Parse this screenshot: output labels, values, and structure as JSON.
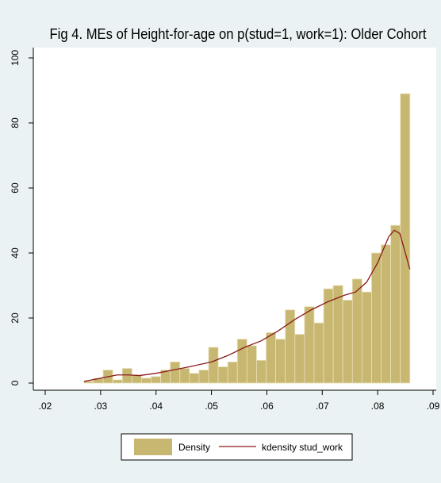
{
  "chart_data": {
    "type": "histogram",
    "title": "Fig 4. MEs of Height-for-age on p(stud=1, work=1): Older Cohort",
    "bins": [
      0.027,
      0.02873,
      0.03046,
      0.03219,
      0.03392,
      0.03565,
      0.03738,
      0.03911,
      0.04084,
      0.04257,
      0.0443,
      0.04603,
      0.04776,
      0.04949,
      0.05122,
      0.05295,
      0.05468,
      0.05641,
      0.05814,
      0.05987,
      0.0616,
      0.06333,
      0.06506,
      0.06679,
      0.06852,
      0.07025,
      0.07198,
      0.07371,
      0.07544,
      0.07717,
      0.0789,
      0.08063,
      0.08236,
      0.08409,
      0.08582
    ],
    "series": [
      {
        "name": "Density",
        "color": "#c8b771",
        "values": [
          0.5,
          1.5,
          4,
          1,
          4.5,
          2.5,
          1.5,
          2,
          4,
          6.5,
          4.5,
          3,
          4,
          11,
          5,
          6.5,
          13.5,
          11.5,
          7,
          15.5,
          13.5,
          22.5,
          15,
          23.5,
          18.5,
          29,
          30,
          25.5,
          32,
          28,
          40,
          42.5,
          48.5,
          89
        ]
      },
      {
        "name": "kdensity stud_work",
        "color": "#8b1a1a",
        "x": [
          0.027,
          0.03,
          0.033,
          0.035,
          0.037,
          0.04,
          0.043,
          0.046,
          0.05,
          0.053,
          0.056,
          0.059,
          0.062,
          0.065,
          0.068,
          0.071,
          0.074,
          0.076,
          0.078,
          0.08,
          0.082,
          0.083,
          0.084,
          0.085,
          0.0858
        ],
        "values": [
          0.5,
          1.5,
          2.5,
          2.5,
          2.3,
          3,
          4,
          5,
          6.5,
          8.5,
          11,
          13,
          16,
          19.5,
          22.5,
          25,
          27,
          28,
          31,
          37,
          45,
          47,
          46,
          40,
          35
        ]
      }
    ],
    "xlim": [
      0.02,
      0.09
    ],
    "xticks": [
      {
        "value": 0.02,
        "label": ".02"
      },
      {
        "value": 0.03,
        "label": ".03"
      },
      {
        "value": 0.04,
        "label": ".04"
      },
      {
        "value": 0.05,
        "label": ".05"
      },
      {
        "value": 0.06,
        "label": ".06"
      },
      {
        "value": 0.07,
        "label": ".07"
      },
      {
        "value": 0.08,
        "label": ".08"
      },
      {
        "value": 0.09,
        "label": ".09"
      }
    ],
    "ylim": [
      0,
      100
    ],
    "yticks": [
      0,
      20,
      40,
      60,
      80,
      100
    ],
    "legend": "bottom"
  }
}
